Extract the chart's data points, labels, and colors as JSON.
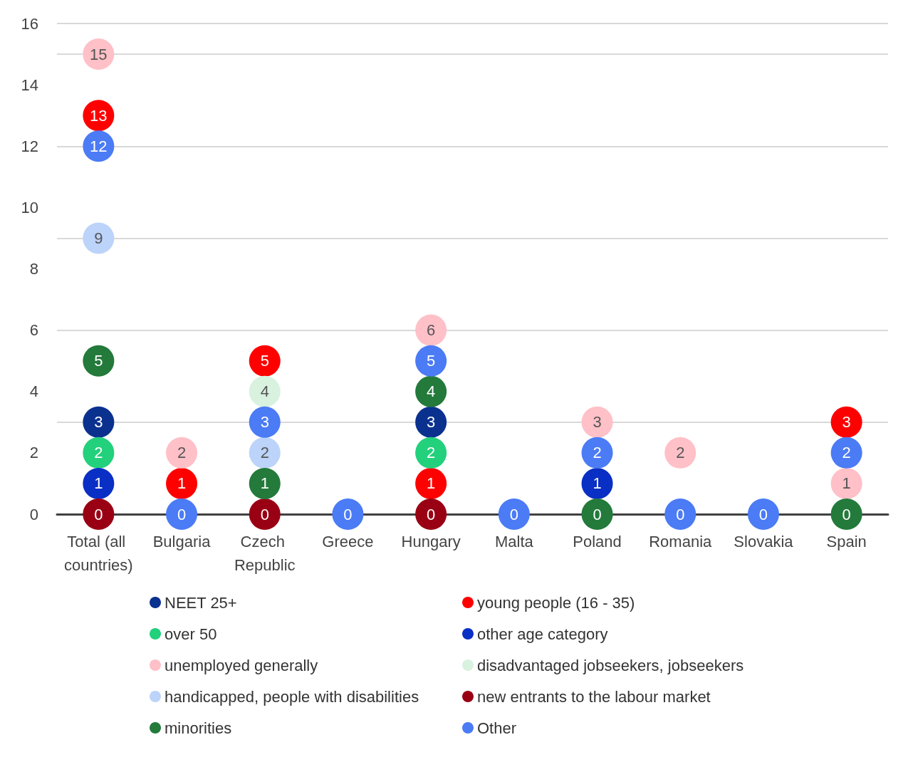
{
  "chart_data": {
    "type": "scatter",
    "categories": [
      "Total (all countries)",
      "Bulgaria",
      "Czech Republic",
      "Greece",
      "Hungary",
      "Malta",
      "Poland",
      "Romania",
      "Slovakia",
      "Spain"
    ],
    "series": [
      {
        "name": "NEET 25+",
        "color": "#0b318f",
        "values": [
          3,
          null,
          null,
          null,
          3,
          null,
          null,
          null,
          null,
          null
        ]
      },
      {
        "name": "young people (16 - 35)",
        "color": "#ff0000",
        "values": [
          13,
          1,
          5,
          null,
          1,
          null,
          null,
          null,
          null,
          3
        ]
      },
      {
        "name": "over 50",
        "color": "#23d07c",
        "values": [
          2,
          null,
          null,
          null,
          2,
          null,
          null,
          null,
          null,
          null
        ]
      },
      {
        "name": "other age category",
        "color": "#0a2fc4",
        "values": [
          1,
          null,
          null,
          null,
          null,
          null,
          1,
          null,
          null,
          null
        ]
      },
      {
        "name": "unemployed generally",
        "color": "#ffc0c8",
        "values": [
          15,
          2,
          null,
          null,
          6,
          null,
          3,
          2,
          null,
          1
        ]
      },
      {
        "name": "disadvantaged jobseekers, jobseekers",
        "color": "#d8f2df",
        "values": [
          null,
          null,
          4,
          null,
          null,
          null,
          null,
          null,
          null,
          null
        ]
      },
      {
        "name": "handicapped, people with disabilities",
        "color": "#bcd3fa",
        "values": [
          9,
          null,
          2,
          null,
          null,
          null,
          null,
          null,
          null,
          null
        ]
      },
      {
        "name": "new entrants to the labour market",
        "color": "#990014",
        "values": [
          0,
          null,
          0,
          null,
          0,
          null,
          null,
          null,
          null,
          null
        ]
      },
      {
        "name": "minorities",
        "color": "#237a3b",
        "values": [
          5,
          null,
          1,
          null,
          4,
          null,
          0,
          null,
          null,
          0
        ]
      },
      {
        "name": "Other",
        "color": "#4b7bf5",
        "values": [
          12,
          0,
          3,
          0,
          5,
          0,
          2,
          0,
          0,
          2
        ]
      }
    ],
    "ylim": [
      0,
      16
    ],
    "yticks": [
      0,
      2,
      4,
      6,
      8,
      10,
      12,
      14,
      16
    ],
    "grid": "y",
    "legend": "bottom",
    "marker": "circle",
    "data_labels": true
  }
}
